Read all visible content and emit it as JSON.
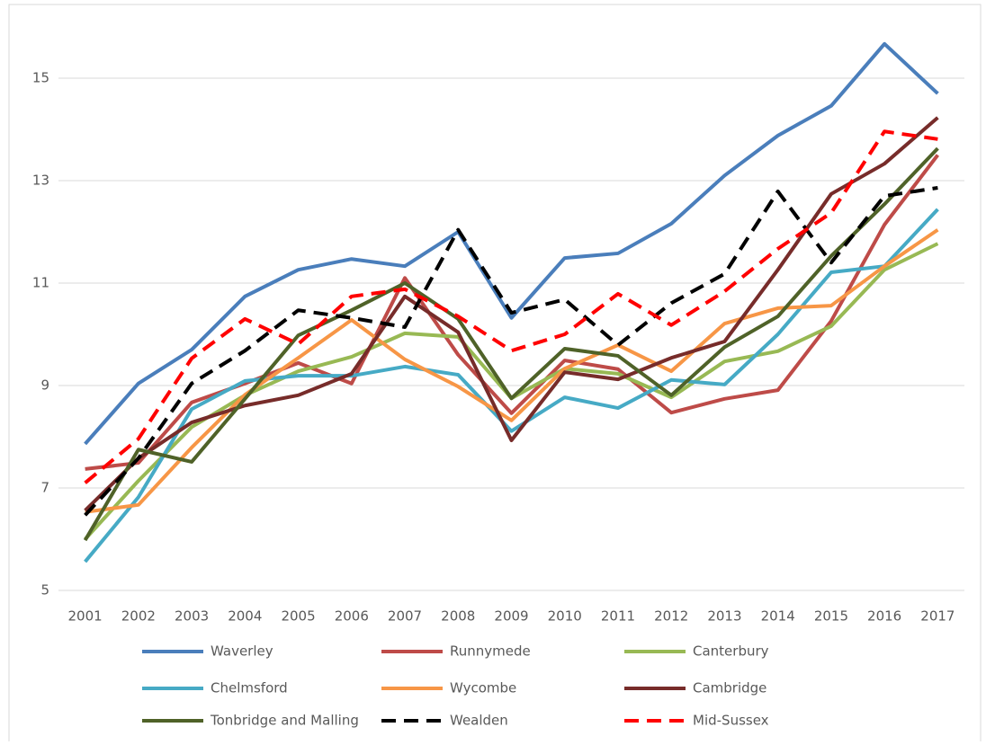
{
  "chart_data": {
    "type": "line",
    "x": [
      "2001",
      "2002",
      "2003",
      "2004",
      "2005",
      "2006",
      "2007",
      "2008",
      "2009",
      "2010",
      "2011",
      "2012",
      "2013",
      "2014",
      "2015",
      "2016",
      "2017"
    ],
    "ylim": [
      5,
      16.2
    ],
    "yticks": [
      5,
      7,
      9,
      11,
      13,
      15
    ],
    "grid": true,
    "series": [
      {
        "name": "Waverley",
        "color": "#4a7ebb",
        "dashed": false,
        "values": [
          7.86,
          9.04,
          9.7,
          10.74,
          11.26,
          11.47,
          11.33,
          12.0,
          10.32,
          11.49,
          11.58,
          12.16,
          13.1,
          13.88,
          14.46,
          15.67,
          14.7
        ]
      },
      {
        "name": "Runnymede",
        "color": "#be4b48",
        "dashed": false,
        "values": [
          7.37,
          7.49,
          8.67,
          9.04,
          9.44,
          9.04,
          11.1,
          9.6,
          8.46,
          9.49,
          9.32,
          8.47,
          8.74,
          8.91,
          10.26,
          12.14,
          13.5
        ]
      },
      {
        "name": "Canterbury",
        "color": "#98b954",
        "dashed": false,
        "values": [
          6.0,
          7.14,
          8.19,
          8.81,
          9.28,
          9.56,
          10.02,
          9.95,
          8.75,
          9.33,
          9.23,
          8.77,
          9.47,
          9.67,
          10.16,
          11.26,
          11.77
        ]
      },
      {
        "name": "Chelmsford",
        "color": "#46aac5",
        "dashed": false,
        "values": [
          5.56,
          6.82,
          8.54,
          9.09,
          9.19,
          9.19,
          9.37,
          9.21,
          8.11,
          8.77,
          8.56,
          9.11,
          9.02,
          10.0,
          11.21,
          11.33,
          12.44
        ]
      },
      {
        "name": "Wycombe",
        "color": "#f79646",
        "dashed": false,
        "values": [
          6.53,
          6.67,
          7.79,
          8.82,
          9.54,
          10.28,
          9.51,
          8.98,
          8.32,
          9.33,
          9.79,
          9.28,
          10.21,
          10.51,
          10.56,
          11.33,
          12.04
        ]
      },
      {
        "name": "Cambridge",
        "color": "#772c2a",
        "dashed": false,
        "values": [
          6.56,
          7.58,
          8.28,
          8.61,
          8.81,
          9.23,
          10.74,
          10.04,
          7.93,
          9.26,
          9.12,
          9.54,
          9.86,
          11.26,
          12.74,
          13.33,
          14.23
        ]
      },
      {
        "name": "Tonbridge and Malling",
        "color": "#4f6228",
        "dashed": false,
        "values": [
          5.98,
          7.75,
          7.51,
          8.74,
          9.98,
          10.47,
          11.0,
          10.3,
          8.75,
          9.72,
          9.58,
          8.81,
          9.75,
          10.35,
          11.53,
          12.54,
          13.63
        ]
      },
      {
        "name": "Wealden",
        "color": "#000000",
        "dashed": true,
        "values": [
          6.47,
          7.58,
          9.04,
          9.68,
          10.47,
          10.32,
          10.14,
          12.04,
          10.42,
          10.68,
          9.79,
          10.61,
          11.18,
          12.79,
          11.4,
          12.7,
          12.86
        ]
      },
      {
        "name": "Mid-Sussex",
        "color": "#ff0000",
        "dashed": true,
        "values": [
          7.1,
          7.96,
          9.53,
          10.3,
          9.81,
          10.74,
          10.88,
          10.35,
          9.68,
          10.0,
          10.79,
          10.18,
          10.84,
          11.67,
          12.37,
          13.96,
          13.81
        ]
      }
    ]
  }
}
